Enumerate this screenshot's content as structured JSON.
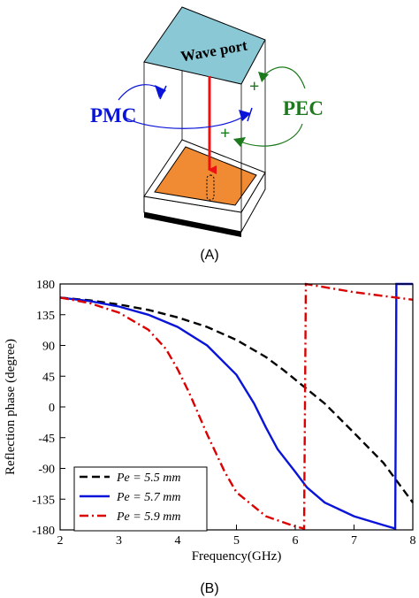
{
  "panel_a": {
    "caption": "(A)",
    "wave_port_label": "Wave port",
    "pmc_label": "PMC",
    "pec_label": "PEC",
    "colors": {
      "wave_port": "#8ac8d6",
      "patch": "#f08a33",
      "pmc": "#0a14d8",
      "pec": "#1c7a1c",
      "arrow": "#ee1111"
    }
  },
  "panel_b": {
    "caption": "(B)"
  },
  "chart_data": {
    "type": "line",
    "title": "",
    "xlabel": "Frequency(GHz)",
    "ylabel": "Reflection phase (degree)",
    "xlim": [
      2,
      8
    ],
    "ylim": [
      -180,
      180
    ],
    "x_ticks": [
      2,
      3,
      4,
      5,
      6,
      7,
      8
    ],
    "y_ticks": [
      180,
      135,
      90,
      45,
      0,
      -45,
      -90,
      -135,
      -180
    ],
    "grid": false,
    "legend_position": "bottom-left",
    "series": [
      {
        "name_prefix": "Pe",
        "name_value": " = 5.5 mm",
        "color": "#000000",
        "dash": "dashed",
        "points": [
          [
            2,
            160
          ],
          [
            2.5,
            156
          ],
          [
            3,
            150
          ],
          [
            3.5,
            142
          ],
          [
            4,
            131
          ],
          [
            4.5,
            117
          ],
          [
            5,
            98
          ],
          [
            5.5,
            73
          ],
          [
            5.8,
            54
          ],
          [
            6,
            40
          ],
          [
            6.2,
            26
          ],
          [
            6.5,
            5
          ],
          [
            7,
            -38
          ],
          [
            7.5,
            -82
          ],
          [
            8,
            -140
          ]
        ]
      },
      {
        "name_prefix": "Pe",
        "name_value": " = 5.7 mm",
        "color": "#0a14d8",
        "dash": "solid",
        "points": [
          [
            2,
            160
          ],
          [
            2.5,
            155
          ],
          [
            3,
            147
          ],
          [
            3.5,
            135
          ],
          [
            4,
            117
          ],
          [
            4.5,
            90
          ],
          [
            5,
            47
          ],
          [
            5.3,
            5
          ],
          [
            5.5,
            -30
          ],
          [
            5.7,
            -62
          ],
          [
            6,
            -95
          ],
          [
            6.2,
            -118
          ],
          [
            6.5,
            -140
          ],
          [
            7,
            -160
          ],
          [
            7.5,
            -173
          ],
          [
            7.7,
            -178
          ],
          [
            7.72,
            180
          ],
          [
            8,
            180
          ]
        ]
      },
      {
        "name_prefix": "Pe",
        "name_value": " = 5.9 mm",
        "color": "#dd0000",
        "dash": "dashdot",
        "points": [
          [
            2,
            160
          ],
          [
            2.5,
            152
          ],
          [
            3,
            138
          ],
          [
            3.5,
            113
          ],
          [
            3.8,
            85
          ],
          [
            4,
            55
          ],
          [
            4.2,
            20
          ],
          [
            4.5,
            -40
          ],
          [
            4.8,
            -95
          ],
          [
            5,
            -125
          ],
          [
            5.5,
            -160
          ],
          [
            6,
            -175
          ],
          [
            6.15,
            -178
          ],
          [
            6.18,
            180
          ],
          [
            7,
            168
          ],
          [
            8,
            157
          ]
        ]
      }
    ]
  }
}
